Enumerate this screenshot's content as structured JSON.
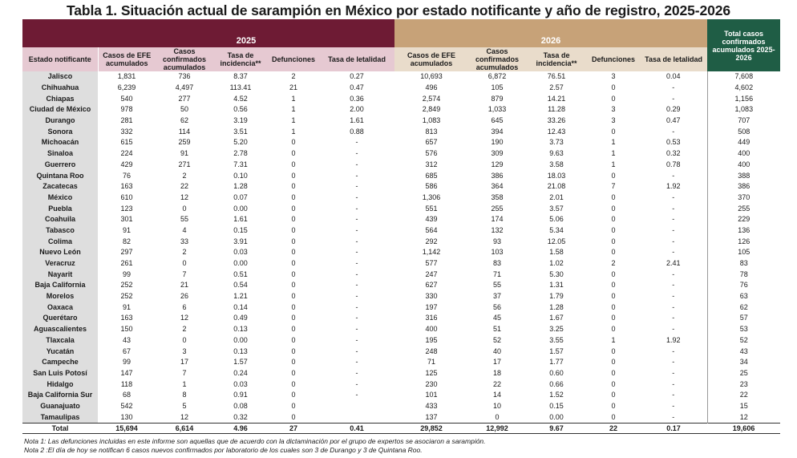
{
  "title": "Tabla 1. Situación actual de sarampión en México por estado notificante y año de registro, 2025-2026",
  "header": {
    "year_2025": "2025",
    "year_2026": "2026",
    "total_label": "Total casos confirmados acumulados 2025-2026",
    "state_col": "Estado notificante",
    "cols_2025": [
      "Casos de EFE acumulados",
      "Casos confirmados acumulados",
      "Tasa de incidencia**",
      "Defunciones",
      "Tasa de letalidad"
    ],
    "cols_2026": [
      "Casos de EFE acumulados",
      "Casos confirmados acumulados",
      "Tasa de incidencia**",
      "Defunciones",
      "Tasa de letalidad"
    ]
  },
  "rows": [
    [
      "Jalisco",
      "1,831",
      "736",
      "8.37",
      "2",
      "0.27",
      "10,693",
      "6,872",
      "76.51",
      "3",
      "0.04",
      "7,608"
    ],
    [
      "Chihuahua",
      "6,239",
      "4,497",
      "113.41",
      "21",
      "0.47",
      "496",
      "105",
      "2.57",
      "0",
      "-",
      "4,602"
    ],
    [
      "Chiapas",
      "540",
      "277",
      "4.52",
      "1",
      "0.36",
      "2,574",
      "879",
      "14.21",
      "0",
      "-",
      "1,156"
    ],
    [
      "Ciudad de México",
      "978",
      "50",
      "0.56",
      "1",
      "2.00",
      "2,849",
      "1,033",
      "11.28",
      "3",
      "0.29",
      "1,083"
    ],
    [
      "Durango",
      "281",
      "62",
      "3.19",
      "1",
      "1.61",
      "1,083",
      "645",
      "33.26",
      "3",
      "0.47",
      "707"
    ],
    [
      "Sonora",
      "332",
      "114",
      "3.51",
      "1",
      "0.88",
      "813",
      "394",
      "12.43",
      "0",
      "-",
      "508"
    ],
    [
      "Michoacán",
      "615",
      "259",
      "5.20",
      "0",
      "-",
      "657",
      "190",
      "3.73",
      "1",
      "0.53",
      "449"
    ],
    [
      "Sinaloa",
      "224",
      "91",
      "2.78",
      "0",
      "-",
      "576",
      "309",
      "9.63",
      "1",
      "0.32",
      "400"
    ],
    [
      "Guerrero",
      "429",
      "271",
      "7.31",
      "0",
      "-",
      "312",
      "129",
      "3.58",
      "1",
      "0.78",
      "400"
    ],
    [
      "Quintana Roo",
      "76",
      "2",
      "0.10",
      "0",
      "-",
      "685",
      "386",
      "18.03",
      "0",
      "-",
      "388"
    ],
    [
      "Zacatecas",
      "163",
      "22",
      "1.28",
      "0",
      "-",
      "586",
      "364",
      "21.08",
      "7",
      "1.92",
      "386"
    ],
    [
      "México",
      "610",
      "12",
      "0.07",
      "0",
      "-",
      "1,306",
      "358",
      "2.01",
      "0",
      "-",
      "370"
    ],
    [
      "Puebla",
      "123",
      "0",
      "0.00",
      "0",
      "-",
      "551",
      "255",
      "3.57",
      "0",
      "-",
      "255"
    ],
    [
      "Coahuila",
      "301",
      "55",
      "1.61",
      "0",
      "-",
      "439",
      "174",
      "5.06",
      "0",
      "-",
      "229"
    ],
    [
      "Tabasco",
      "91",
      "4",
      "0.15",
      "0",
      "-",
      "564",
      "132",
      "5.34",
      "0",
      "-",
      "136"
    ],
    [
      "Colima",
      "82",
      "33",
      "3.91",
      "0",
      "-",
      "292",
      "93",
      "12.05",
      "0",
      "-",
      "126"
    ],
    [
      "Nuevo León",
      "297",
      "2",
      "0.03",
      "0",
      "-",
      "1,142",
      "103",
      "1.58",
      "0",
      "-",
      "105"
    ],
    [
      "Veracruz",
      "261",
      "0",
      "0.00",
      "0",
      "-",
      "577",
      "83",
      "1.02",
      "2",
      "2.41",
      "83"
    ],
    [
      "Nayarit",
      "99",
      "7",
      "0.51",
      "0",
      "-",
      "247",
      "71",
      "5.30",
      "0",
      "-",
      "78"
    ],
    [
      "Baja California",
      "252",
      "21",
      "0.54",
      "0",
      "-",
      "627",
      "55",
      "1.31",
      "0",
      "-",
      "76"
    ],
    [
      "Morelos",
      "252",
      "26",
      "1.21",
      "0",
      "-",
      "330",
      "37",
      "1.79",
      "0",
      "-",
      "63"
    ],
    [
      "Oaxaca",
      "91",
      "6",
      "0.14",
      "0",
      "-",
      "197",
      "56",
      "1.28",
      "0",
      "-",
      "62"
    ],
    [
      "Querétaro",
      "163",
      "12",
      "0.49",
      "0",
      "-",
      "316",
      "45",
      "1.67",
      "0",
      "-",
      "57"
    ],
    [
      "Aguascalientes",
      "150",
      "2",
      "0.13",
      "0",
      "-",
      "400",
      "51",
      "3.25",
      "0",
      "-",
      "53"
    ],
    [
      "Tlaxcala",
      "43",
      "0",
      "0.00",
      "0",
      "-",
      "195",
      "52",
      "3.55",
      "1",
      "1.92",
      "52"
    ],
    [
      "Yucatán",
      "67",
      "3",
      "0.13",
      "0",
      "-",
      "248",
      "40",
      "1.57",
      "0",
      "-",
      "43"
    ],
    [
      "Campeche",
      "99",
      "17",
      "1.57",
      "0",
      "-",
      "71",
      "17",
      "1.77",
      "0",
      "-",
      "34"
    ],
    [
      "San Luis Potosí",
      "147",
      "7",
      "0.24",
      "0",
      "-",
      "125",
      "18",
      "0.60",
      "0",
      "-",
      "25"
    ],
    [
      "Hidalgo",
      "118",
      "1",
      "0.03",
      "0",
      "-",
      "230",
      "22",
      "0.66",
      "0",
      "-",
      "23"
    ],
    [
      "Baja California Sur",
      "68",
      "8",
      "0.91",
      "0",
      "-",
      "101",
      "14",
      "1.52",
      "0",
      "-",
      "22"
    ],
    [
      "Guanajuato",
      "542",
      "5",
      "0.08",
      "0",
      "",
      "433",
      "10",
      "0.15",
      "0",
      "-",
      "15"
    ],
    [
      "Tamaulipas",
      "130",
      "12",
      "0.32",
      "0",
      "",
      "137",
      "0",
      "0.00",
      "0",
      "-",
      "12"
    ]
  ],
  "totals": [
    "Total",
    "15,694",
    "6,614",
    "4.96",
    "27",
    "0.41",
    "29,852",
    "12,992",
    "9.67",
    "22",
    "0.17",
    "19,606"
  ],
  "notes": [
    "Nota 1: Las defunciones incluidas en este informe son aquellas que de acuerdo con la dictaminación por el grupo de expertos se asociaron a sarampión.",
    "Nota 2 :El día de hoy se notifican 6 casos nuevos confirmados por laboratorio de los cuales son 3 de Durango y  3 de Quintana Roo."
  ]
}
